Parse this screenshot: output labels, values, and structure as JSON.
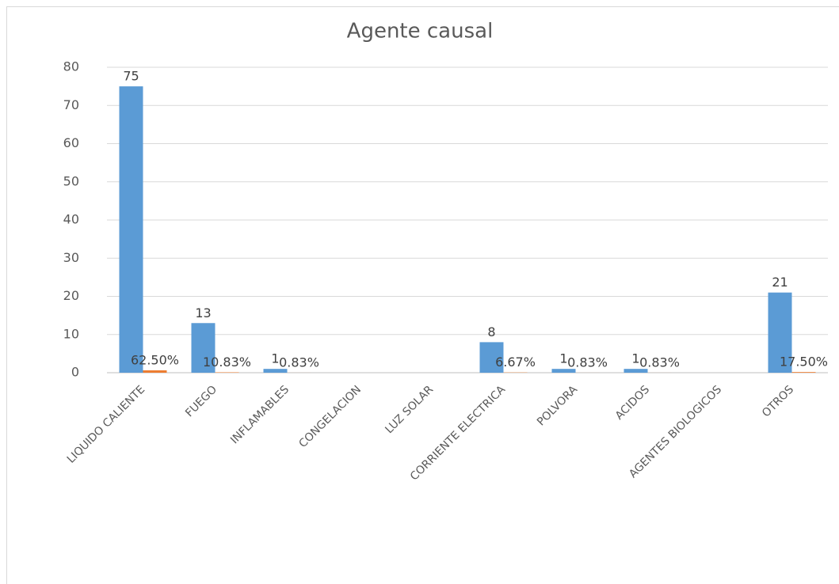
{
  "chart_data": {
    "type": "bar",
    "title": "Agente causal",
    "categories": [
      "LIQUIDO CALIENTE",
      "FUEGO",
      "INFLAMABLES",
      "CONGELACION",
      "LUZ SOLAR",
      "CORRIENTE ELECTRICA",
      "POLVORA",
      "ACIDOS",
      "AGENTES BIOLOGICOS",
      "OTROS"
    ],
    "series": [
      {
        "color": "#5b9bd5",
        "values": [
          75,
          13,
          1,
          null,
          null,
          8,
          1,
          1,
          null,
          21
        ]
      },
      {
        "color": "#ed7d31",
        "values": [
          0.625,
          0.1083,
          0.0083,
          null,
          null,
          0.0667,
          0.0083,
          0.0083,
          null,
          0.175
        ],
        "value_labels": [
          "62.50%",
          "10.83%",
          "0.83%",
          null,
          null,
          "6.67%",
          "0.83%",
          "0.83%",
          null,
          "17.50%"
        ]
      }
    ],
    "ylim": [
      0,
      80
    ],
    "yticks": [
      0,
      10,
      20,
      30,
      40,
      50,
      60,
      70,
      80
    ],
    "grid": true
  }
}
